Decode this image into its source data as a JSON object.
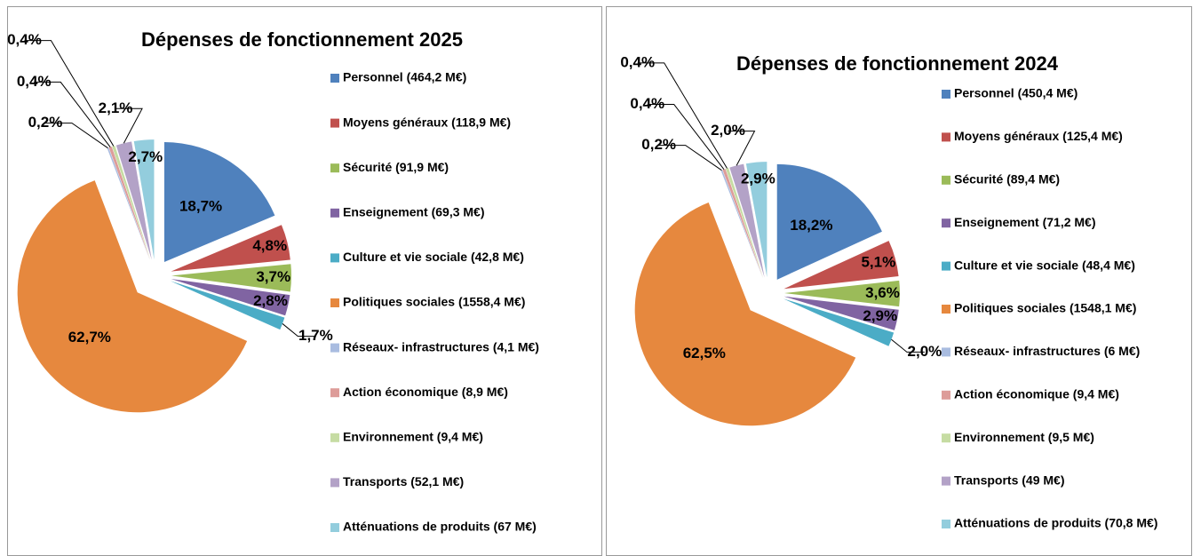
{
  "chart_data": [
    {
      "type": "pie",
      "title": "Dépenses de fonctionnement 2025",
      "categories": [
        "Personnel (464,2 M€)",
        "Moyens généraux (118,9 M€)",
        "Sécurité (91,9 M€)",
        "Enseignement (69,3 M€)",
        "Culture et vie sociale (42,8 M€)",
        "Politiques sociales (1558,4 M€)",
        "Réseaux- infrastructures (4,1 M€)",
        "Action économique (8,9 M€)",
        "Environnement (9,4 M€)",
        "Transports (52,1 M€)",
        "Atténuations de produits (67 M€)"
      ],
      "values": [
        18.7,
        4.8,
        3.7,
        2.8,
        1.7,
        62.7,
        0.2,
        0.4,
        0.4,
        2.1,
        2.7
      ],
      "value_labels": [
        "18,7%",
        "4,8%",
        "3,7%",
        "2,8%",
        "1,7%",
        "62,7%",
        "0,2%",
        "0,4%",
        "0,4%",
        "2,1%",
        "2,7%"
      ],
      "colors": [
        "#4f81bd",
        "#c0504d",
        "#9bbb59",
        "#8064a2",
        "#4bacc6",
        "#e6883e",
        "#a9bce0",
        "#dd9c99",
        "#c6dca3",
        "#b3a2c7",
        "#93cddd"
      ]
    },
    {
      "type": "pie",
      "title": "Dépenses de fonctionnement 2024",
      "categories": [
        "Personnel (450,4 M€)",
        "Moyens généraux (125,4 M€)",
        "Sécurité (89,4 M€)",
        "Enseignement (71,2 M€)",
        "Culture et vie sociale (48,4 M€)",
        "Politiques sociales (1548,1 M€)",
        "Réseaux- infrastructures (6 M€)",
        "Action économique (9,4 M€)",
        "Environnement (9,5 M€)",
        "Transports (49 M€)",
        "Atténuations de produits (70,8 M€)"
      ],
      "values": [
        18.2,
        5.1,
        3.6,
        2.9,
        2.0,
        62.5,
        0.2,
        0.4,
        0.4,
        2.0,
        2.9
      ],
      "value_labels": [
        "18,2%",
        "5,1%",
        "3,6%",
        "2,9%",
        "2,0%",
        "62,5%",
        "0,2%",
        "0,4%",
        "0,4%",
        "2,0%",
        "2,9%"
      ],
      "colors": [
        "#4f81bd",
        "#c0504d",
        "#9bbb59",
        "#8064a2",
        "#4bacc6",
        "#e6883e",
        "#a9bce0",
        "#dd9c99",
        "#c6dca3",
        "#b3a2c7",
        "#93cddd"
      ]
    }
  ]
}
